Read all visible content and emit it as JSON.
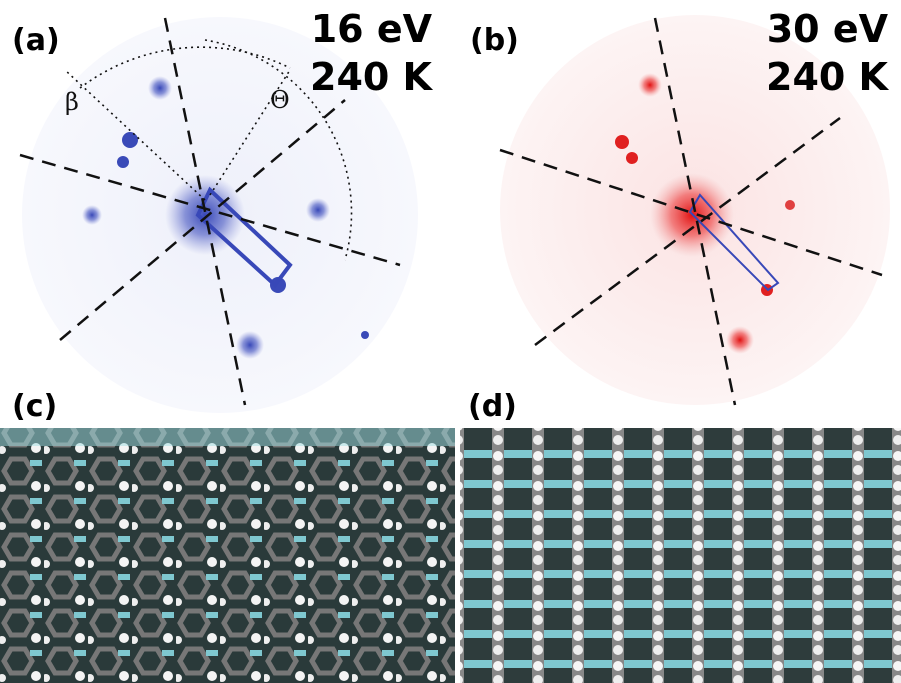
{
  "panels": [
    {
      "label": "(a)",
      "energy": "16 eV",
      "temperature": "240 K",
      "angle_labels": [
        "β",
        "Θ"
      ]
    },
    {
      "label": "(b)",
      "energy": "30 eV",
      "temperature": "240 K"
    },
    {
      "label": "(c)"
    },
    {
      "label": "(d)"
    }
  ]
}
